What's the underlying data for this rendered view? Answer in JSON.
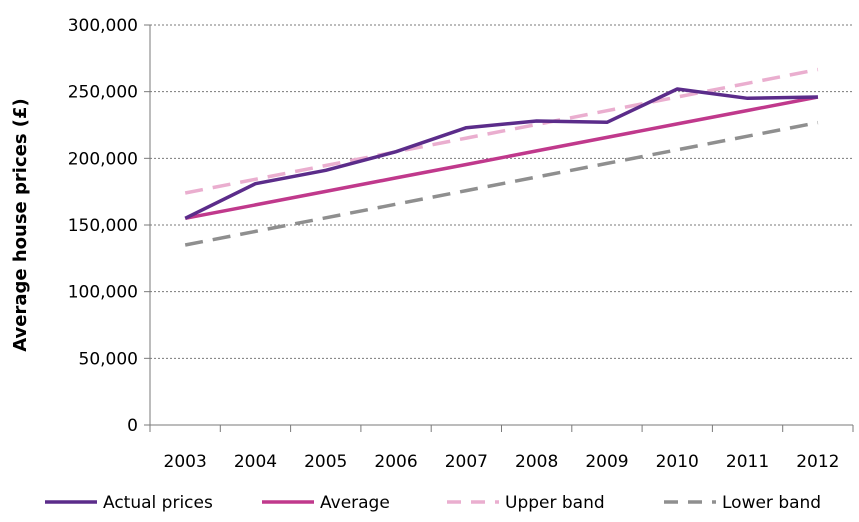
{
  "chart_data": {
    "type": "line",
    "title": "",
    "xlabel": "",
    "ylabel": "Average house prices (£)",
    "categories": [
      "2003",
      "2004",
      "2005",
      "2006",
      "2007",
      "2008",
      "2009",
      "2010",
      "2011",
      "2012"
    ],
    "y_tick_labels": [
      "0",
      "50,000",
      "100,000",
      "150,000",
      "200,000",
      "250,000",
      "300,000"
    ],
    "ylim": [
      0,
      300000
    ],
    "grid": true,
    "legend_position": "bottom",
    "series": [
      {
        "name": "Actual prices",
        "color": "#5b2c8a",
        "dash": "solid",
        "values": [
          155000,
          181000,
          191000,
          205000,
          223000,
          228000,
          227000,
          252000,
          245000,
          246000
        ]
      },
      {
        "name": "Average",
        "color": "#c0398c",
        "dash": "solid",
        "values": [
          155000,
          165100,
          175200,
          185300,
          195400,
          205600,
          215700,
          225800,
          235900,
          246000
        ]
      },
      {
        "name": "Upper band",
        "color": "#eaaecf",
        "dash": "dashed",
        "values": [
          174000,
          184300,
          194600,
          204900,
          215200,
          225400,
          235700,
          246000,
          256300,
          266600
        ]
      },
      {
        "name": "Lower band",
        "color": "#8f8f8f",
        "dash": "dashed",
        "values": [
          135000,
          145200,
          155400,
          165600,
          175800,
          186000,
          196200,
          206400,
          216600,
          226800
        ]
      }
    ]
  }
}
